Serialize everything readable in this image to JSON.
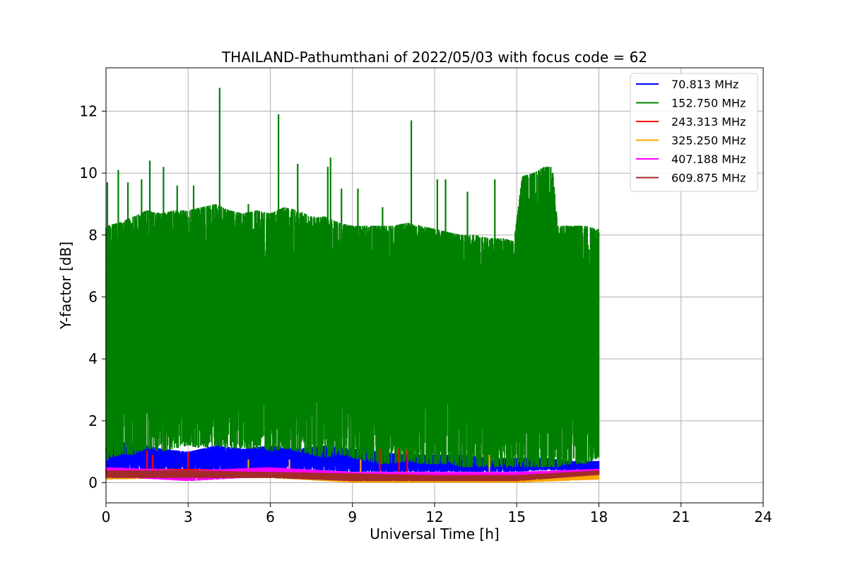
{
  "chart_data": {
    "type": "line",
    "title": "THAILAND-Pathumthani of 2022/05/03 with focus code = 62",
    "xlabel": "Universal Time [h]",
    "ylabel": "Y-factor [dB]",
    "xlim": [
      0,
      24
    ],
    "ylim": [
      -0.65,
      13.4
    ],
    "xticks": [
      0,
      3,
      6,
      9,
      12,
      15,
      18,
      21,
      24
    ],
    "yticks": [
      0,
      2,
      4,
      6,
      8,
      10,
      12
    ],
    "xtick_labels": [
      "0",
      "3",
      "6",
      "9",
      "12",
      "15",
      "18",
      "21",
      "24"
    ],
    "ytick_labels": [
      "0",
      "2",
      "4",
      "6",
      "8",
      "10",
      "12"
    ],
    "grid": true,
    "legend_position": "top-right",
    "data_extent_hours": [
      0,
      18
    ],
    "series": [
      {
        "name": "  70.813 MHz",
        "color": "#0000ff",
        "kind": "band",
        "x": [
          0,
          1,
          2,
          3,
          4,
          5,
          6,
          7,
          8,
          9,
          10,
          11,
          12,
          13,
          14,
          15,
          16,
          17,
          18
        ],
        "low": [
          0.35,
          0.4,
          0.4,
          0.4,
          0.4,
          0.4,
          0.4,
          0.4,
          0.4,
          0.35,
          0.35,
          0.35,
          0.35,
          0.35,
          0.35,
          0.35,
          0.4,
          0.4,
          0.4
        ],
        "high": [
          1.3,
          1.3,
          1.1,
          1.0,
          1.2,
          1.1,
          1.2,
          1.1,
          1.2,
          1.1,
          1.0,
          0.9,
          0.9,
          0.9,
          0.8,
          0.8,
          0.8,
          0.7,
          0.7
        ],
        "spikes": [
          [
            0.5,
            1.85
          ],
          [
            2.15,
            2.0
          ],
          [
            4.1,
            2.0
          ],
          [
            8.1,
            2.2
          ],
          [
            9.5,
            1.9
          ],
          [
            12.3,
            1.6
          ]
        ]
      },
      {
        "name": "152.750 MHz",
        "color": "#008000",
        "kind": "band",
        "x": [
          0,
          0.5,
          1,
          1.5,
          2,
          2.5,
          3,
          3.5,
          4,
          4.5,
          5,
          5.5,
          6,
          6.5,
          7,
          7.5,
          8,
          8.5,
          9,
          9.5,
          10,
          10.5,
          11,
          11.5,
          12,
          12.5,
          13,
          13.5,
          14,
          14.5,
          14.9,
          15.2,
          15.6,
          16,
          16.3,
          16.5,
          17,
          17.5,
          18
        ],
        "low": [
          0.7,
          0.9,
          0.9,
          1.1,
          1.0,
          1.1,
          1.2,
          1.1,
          1.2,
          1.1,
          1.1,
          1.1,
          1.0,
          1.1,
          1.0,
          0.9,
          0.8,
          0.9,
          0.8,
          0.7,
          0.6,
          0.6,
          0.7,
          0.6,
          0.6,
          0.6,
          0.5,
          0.5,
          0.5,
          0.5,
          0.5,
          0.5,
          0.5,
          0.5,
          0.5,
          0.5,
          0.6,
          0.6,
          0.8
        ],
        "high": [
          8.3,
          8.4,
          8.6,
          8.8,
          8.7,
          8.8,
          8.8,
          8.9,
          9.0,
          8.8,
          8.7,
          8.8,
          8.7,
          8.9,
          8.8,
          8.6,
          8.6,
          8.4,
          8.3,
          8.3,
          8.3,
          8.3,
          8.4,
          8.3,
          8.2,
          8.1,
          8.0,
          8.0,
          7.9,
          7.9,
          7.8,
          9.9,
          10.0,
          10.2,
          10.2,
          8.3,
          8.3,
          8.3,
          8.2
        ],
        "spikes": [
          [
            0.05,
            9.7
          ],
          [
            0.45,
            10.1
          ],
          [
            0.8,
            9.7
          ],
          [
            1.3,
            9.8
          ],
          [
            1.6,
            10.4
          ],
          [
            2.1,
            10.2
          ],
          [
            2.6,
            9.6
          ],
          [
            3.2,
            9.6
          ],
          [
            4.15,
            12.75
          ],
          [
            5.2,
            9.0
          ],
          [
            6.3,
            11.9
          ],
          [
            7.0,
            10.3
          ],
          [
            8.1,
            10.2
          ],
          [
            8.2,
            10.5
          ],
          [
            8.6,
            9.5
          ],
          [
            9.2,
            9.5
          ],
          [
            10.1,
            8.9
          ],
          [
            11.15,
            11.7
          ],
          [
            12.1,
            9.8
          ],
          [
            12.4,
            9.8
          ],
          [
            13.2,
            9.4
          ],
          [
            14.2,
            9.8
          ]
        ]
      },
      {
        "name": "243.313 MHz",
        "color": "#ff0000",
        "kind": "band",
        "x": [
          0,
          3,
          6,
          9,
          12,
          15,
          18
        ],
        "low": [
          0.25,
          0.25,
          0.2,
          0.05,
          0.05,
          0.05,
          0.25
        ],
        "high": [
          0.45,
          0.45,
          0.4,
          0.3,
          0.25,
          0.25,
          0.4
        ],
        "spikes": [
          [
            1.5,
            1.05
          ],
          [
            1.7,
            0.9
          ],
          [
            3.0,
            1.0
          ],
          [
            10.0,
            1.1
          ],
          [
            10.7,
            1.1
          ],
          [
            11.0,
            1.05
          ]
        ]
      },
      {
        "name": "325.250 MHz",
        "color": "#ffa500",
        "kind": "band",
        "x": [
          0,
          3,
          6,
          9,
          12,
          15,
          18
        ],
        "low": [
          0.1,
          0.15,
          0.15,
          0.0,
          0.0,
          0.0,
          0.1
        ],
        "high": [
          0.25,
          0.35,
          0.35,
          0.25,
          0.15,
          0.15,
          0.25
        ],
        "spikes": [
          [
            5.2,
            0.75
          ],
          [
            6.7,
            0.75
          ],
          [
            9.3,
            0.75
          ],
          [
            14.0,
            0.9
          ]
        ]
      },
      {
        "name": "407.188 MHz",
        "color": "#ff00ff",
        "kind": "band",
        "x": [
          0,
          3,
          6,
          9,
          12,
          15,
          18
        ],
        "low": [
          0.2,
          0.05,
          0.2,
          0.05,
          0.2,
          0.2,
          0.3
        ],
        "high": [
          0.5,
          0.4,
          0.5,
          0.35,
          0.35,
          0.35,
          0.45
        ],
        "spikes": []
      },
      {
        "name": "609.875 MHz",
        "color": "#a52a2a",
        "kind": "band",
        "x": [
          0,
          3,
          6,
          9,
          12,
          15,
          18
        ],
        "low": [
          0.15,
          0.15,
          0.15,
          0.05,
          0.05,
          0.05,
          0.25
        ],
        "high": [
          0.4,
          0.4,
          0.35,
          0.3,
          0.25,
          0.25,
          0.4
        ],
        "spikes": []
      }
    ]
  }
}
